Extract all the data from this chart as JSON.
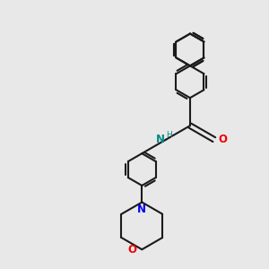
{
  "bg_color": "#e8e8e8",
  "bond_color": "#1a1a1a",
  "nitrogen_color": "#0000ee",
  "oxygen_color": "#ee0000",
  "amide_n_color": "#008888",
  "lw": 1.5,
  "figsize": [
    3.0,
    3.0
  ],
  "dpi": 100,
  "xlim": [
    -3.5,
    4.5
  ],
  "ylim": [
    -5.5,
    4.0
  ]
}
